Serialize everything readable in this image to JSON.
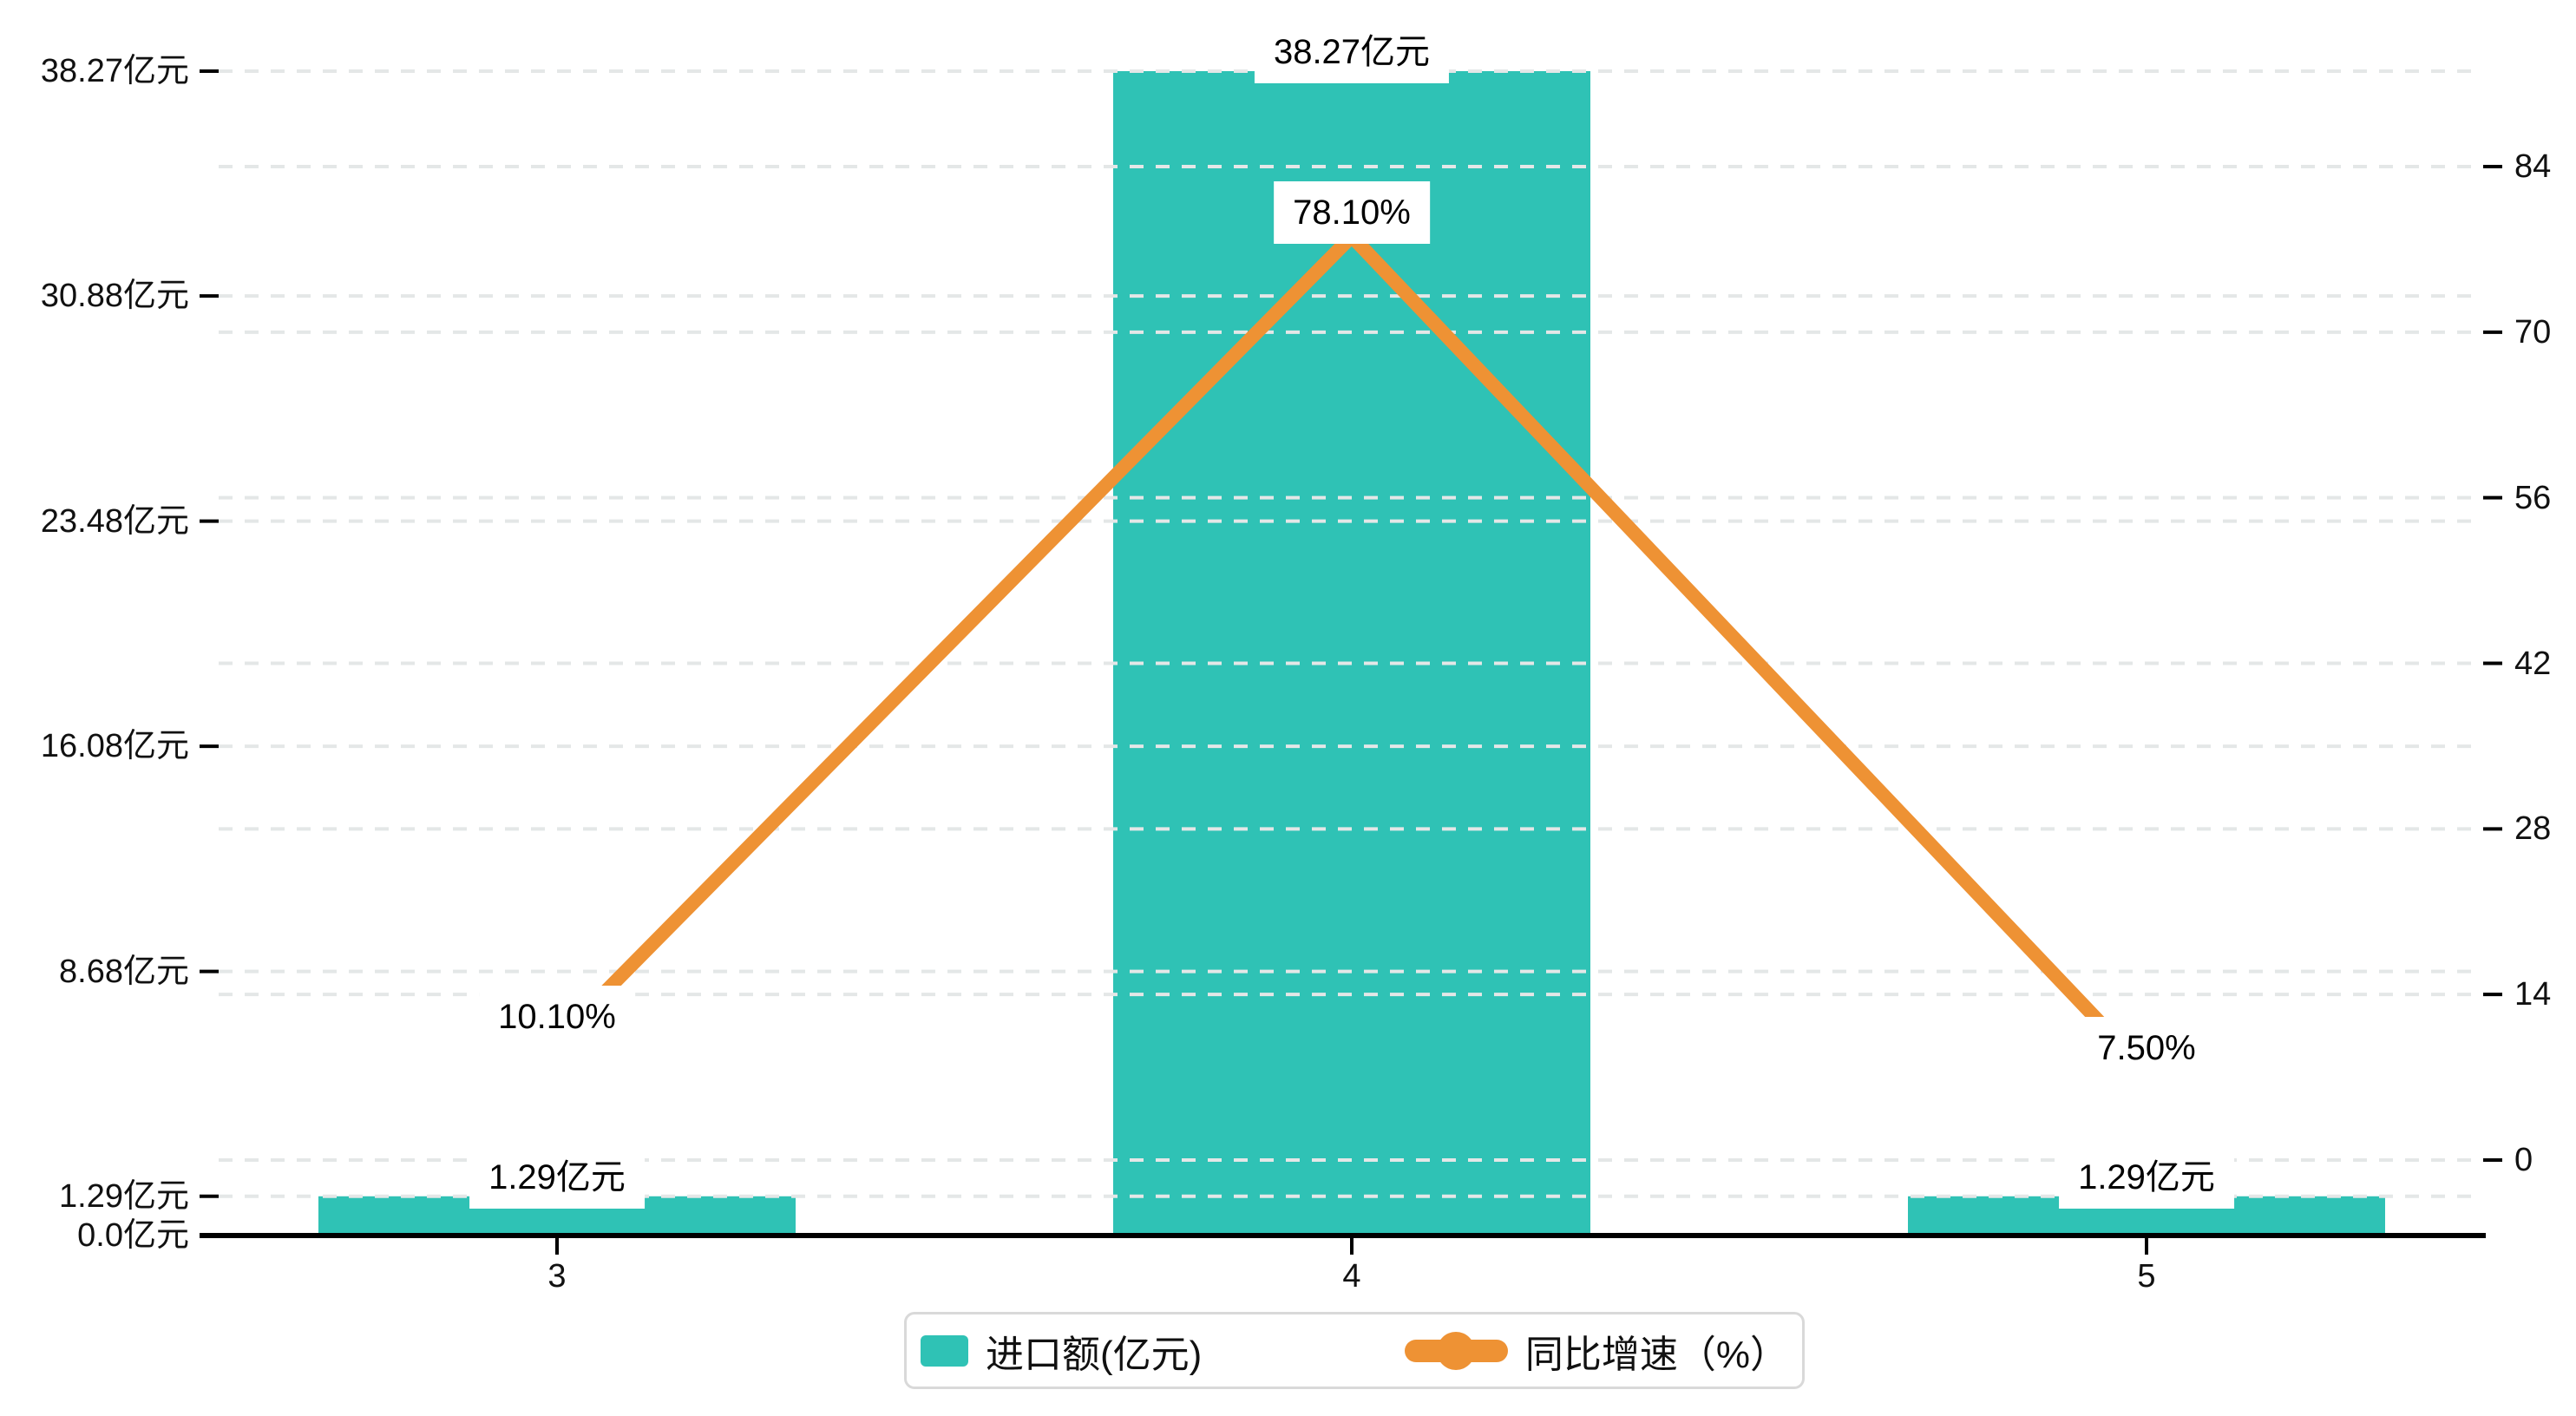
{
  "chart_data": {
    "type": "bar+line",
    "categories": [
      "3",
      "4",
      "5"
    ],
    "series": [
      {
        "name": "进口额(亿元)",
        "type": "bar",
        "axis": "left",
        "color": "#2FC2B5",
        "values": [
          1.29,
          38.27,
          1.29
        ],
        "point_labels": [
          "1.29亿元",
          "38.27亿元",
          "1.29亿元"
        ]
      },
      {
        "name": "同比增速（%）",
        "type": "line",
        "axis": "right",
        "color": "#EE9234",
        "values": [
          10.1,
          78.1,
          7.5
        ],
        "point_labels": [
          "10.10%",
          "78.10%",
          "7.50%"
        ]
      }
    ],
    "left_axis": {
      "min": 0,
      "max": 38.27,
      "ticks": [
        {
          "label": "0.0亿元",
          "value": 0
        },
        {
          "label": "1.29亿元",
          "value": 1.29
        },
        {
          "label": "8.68亿元",
          "value": 8.68
        },
        {
          "label": "16.08亿元",
          "value": 16.08
        },
        {
          "label": "23.48亿元",
          "value": 23.48
        },
        {
          "label": "30.88亿元",
          "value": 30.88
        },
        {
          "label": "38.27亿元",
          "value": 38.27
        }
      ]
    },
    "right_axis": {
      "min": 0,
      "max": 84,
      "ticks": [
        {
          "label": "0",
          "value": 0
        },
        {
          "label": "14",
          "value": 14
        },
        {
          "label": "28",
          "value": 28
        },
        {
          "label": "42",
          "value": 42
        },
        {
          "label": "56",
          "value": 56
        },
        {
          "label": "70",
          "value": 70
        },
        {
          "label": "84",
          "value": 84
        }
      ]
    },
    "grid": "dashed",
    "legend_position": "bottom-center"
  },
  "legend": {
    "items": [
      {
        "label": "进口额(亿元)",
        "color": "#2FC2B5",
        "icon": "bar-swatch"
      },
      {
        "label": "同比增速（%）",
        "color": "#EE9234",
        "icon": "line-with-dot"
      }
    ]
  },
  "colors": {
    "bar": "#2FC2B5",
    "line": "#EE9234",
    "gridline": "#E4E7E7",
    "axis": "#000000",
    "text": "#111111",
    "legend_border": "#D9D9D9",
    "label_background": "#FFFFFF"
  }
}
